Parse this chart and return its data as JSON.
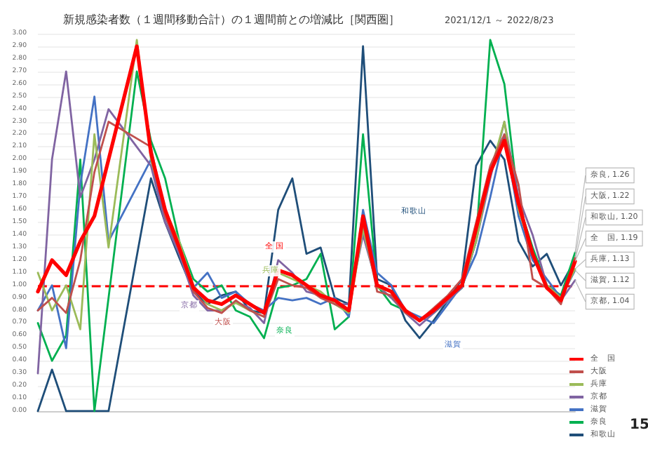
{
  "chart_data": {
    "type": "line",
    "title": "新規感染者数（１週間移動合計）の１週間前との増減比［関西圏］",
    "subtitle": "2021/12/1 ～ 2022/8/23",
    "categories": [
      null,
      null,
      null,
      null,
      null,
      null,
      null,
      null,
      null,
      null,
      null,
      null,
      null,
      null,
      null,
      null,
      null,
      null,
      null,
      null,
      null,
      null,
      null,
      null,
      null,
      null,
      null,
      null,
      null,
      null,
      null,
      null,
      null,
      null,
      null,
      null,
      null,
      null,
      null
    ],
    "series": [
      {
        "name": "全　国",
        "color": "#ff0000",
        "values": [
          0.95,
          1.2,
          1.08,
          1.35,
          1.55,
          2.0,
          null,
          2.9,
          2.05,
          1.6,
          1.3,
          0.98,
          0.88,
          0.85,
          0.92,
          0.85,
          0.78,
          1.12,
          1.08,
          1.0,
          0.92,
          0.88,
          0.8,
          1.55,
          1.0,
          0.95,
          0.8,
          0.72,
          0.8,
          0.9,
          1.0,
          1.45,
          1.9,
          2.15,
          1.65,
          1.25,
          0.98,
          0.88,
          1.19
        ],
        "value_labels": [
          null,
          null,
          null,
          null,
          null,
          null,
          null,
          null,
          null,
          null,
          null,
          null,
          null,
          null,
          null,
          null,
          null,
          null,
          null,
          null,
          null,
          null,
          null,
          null,
          null,
          null,
          null,
          null,
          null,
          null,
          null,
          null,
          null,
          null,
          null,
          null,
          null,
          null,
          "全　国, 1.19"
        ]
      },
      {
        "name": "大阪",
        "color": "#c0504d",
        "values": [
          0.8,
          0.9,
          0.78,
          1.2,
          1.9,
          2.3,
          null,
          null,
          2.1,
          1.55,
          1.28,
          0.95,
          0.82,
          0.78,
          0.88,
          0.8,
          0.75,
          1.05,
          1.0,
          0.98,
          0.9,
          0.85,
          0.8,
          1.5,
          0.95,
          0.92,
          0.78,
          0.72,
          0.82,
          0.92,
          1.05,
          1.5,
          1.95,
          2.2,
          1.8,
          1.05,
          0.98,
          0.85,
          1.22
        ],
        "value_labels": [
          null,
          null,
          null,
          null,
          null,
          null,
          null,
          null,
          null,
          null,
          null,
          null,
          null,
          null,
          null,
          null,
          null,
          null,
          null,
          null,
          null,
          null,
          null,
          null,
          null,
          null,
          null,
          null,
          null,
          null,
          null,
          null,
          null,
          null,
          null,
          null,
          null,
          null,
          "大阪, 1.22"
        ]
      },
      {
        "name": "兵庫",
        "color": "#9bbb59",
        "values": [
          1.1,
          0.8,
          1.0,
          0.65,
          2.2,
          1.3,
          null,
          2.95,
          2.0,
          1.6,
          1.35,
          1.0,
          0.85,
          0.8,
          0.86,
          0.8,
          0.75,
          1.1,
          1.05,
          1.0,
          0.95,
          0.85,
          0.78,
          1.45,
          0.98,
          0.95,
          0.8,
          0.72,
          0.8,
          0.9,
          1.0,
          1.35,
          1.9,
          2.3,
          1.6,
          1.25,
          1.0,
          0.9,
          1.13
        ],
        "value_labels": [
          null,
          null,
          null,
          null,
          null,
          null,
          null,
          null,
          null,
          null,
          null,
          null,
          null,
          null,
          null,
          null,
          null,
          null,
          null,
          null,
          null,
          null,
          null,
          null,
          null,
          null,
          null,
          null,
          null,
          null,
          null,
          null,
          null,
          null,
          null,
          null,
          null,
          null,
          "兵庫, 1.13"
        ]
      },
      {
        "name": "京都",
        "color": "#8064a2",
        "values": [
          0.3,
          2.0,
          2.7,
          1.7,
          2.0,
          2.4,
          null,
          null,
          1.95,
          1.5,
          1.25,
          0.92,
          0.8,
          0.8,
          0.87,
          0.82,
          0.7,
          1.2,
          1.1,
          0.95,
          0.92,
          0.85,
          0.85,
          1.4,
          1.0,
          0.9,
          0.78,
          0.68,
          0.78,
          0.88,
          0.98,
          1.35,
          1.85,
          2.3,
          1.7,
          1.4,
          1.0,
          0.88,
          1.04
        ],
        "value_labels": [
          null,
          null,
          null,
          null,
          null,
          null,
          null,
          null,
          null,
          null,
          null,
          null,
          null,
          null,
          null,
          null,
          null,
          null,
          null,
          null,
          null,
          null,
          null,
          null,
          null,
          null,
          null,
          null,
          null,
          null,
          null,
          null,
          null,
          null,
          null,
          null,
          null,
          null,
          "京都, 1.04"
        ]
      },
      {
        "name": "滋賀",
        "color": "#4472c4",
        "values": [
          0.8,
          1.0,
          0.5,
          1.8,
          2.5,
          1.35,
          null,
          null,
          2.0,
          1.55,
          1.25,
          0.98,
          1.1,
          0.9,
          0.95,
          0.85,
          0.8,
          0.9,
          0.88,
          0.9,
          0.85,
          0.9,
          0.75,
          1.6,
          1.1,
          1.0,
          0.8,
          0.75,
          0.7,
          0.85,
          1.0,
          1.25,
          1.7,
          2.2,
          1.55,
          1.2,
          1.05,
          0.9,
          1.12
        ],
        "value_labels": [
          null,
          null,
          null,
          null,
          null,
          null,
          null,
          null,
          null,
          null,
          null,
          null,
          null,
          null,
          null,
          null,
          null,
          null,
          null,
          null,
          null,
          null,
          null,
          null,
          null,
          null,
          null,
          null,
          null,
          null,
          null,
          null,
          null,
          null,
          null,
          null,
          null,
          null,
          "滋賀, 1.12"
        ]
      },
      {
        "name": "奈良",
        "color": "#00b050",
        "values": [
          0.7,
          0.4,
          0.6,
          2.0,
          0.0,
          null,
          null,
          2.7,
          2.15,
          1.85,
          1.35,
          1.05,
          0.95,
          1.0,
          0.8,
          0.75,
          0.58,
          0.98,
          1.0,
          1.05,
          1.25,
          0.65,
          0.75,
          2.2,
          1.0,
          0.85,
          0.8,
          0.72,
          0.78,
          0.88,
          0.98,
          1.35,
          2.95,
          2.6,
          1.65,
          1.3,
          1.0,
          0.92,
          1.26
        ],
        "value_labels": [
          null,
          null,
          null,
          null,
          null,
          null,
          null,
          null,
          null,
          null,
          null,
          null,
          null,
          null,
          null,
          null,
          null,
          null,
          null,
          null,
          null,
          null,
          null,
          null,
          null,
          null,
          null,
          null,
          null,
          null,
          null,
          null,
          null,
          null,
          null,
          null,
          null,
          null,
          "奈良, 1.26"
        ]
      },
      {
        "name": "和歌山",
        "color": "#1f4e79",
        "values": [
          0.0,
          0.33,
          0.0,
          0.0,
          0.0,
          0.0,
          null,
          null,
          1.85,
          1.5,
          1.22,
          0.95,
          0.85,
          0.92,
          0.95,
          0.8,
          0.78,
          1.6,
          1.85,
          1.25,
          1.3,
          0.9,
          0.85,
          2.9,
          1.05,
          1.0,
          0.72,
          0.58,
          0.72,
          0.88,
          1.05,
          1.95,
          2.15,
          2.0,
          1.35,
          1.15,
          1.25,
          1.0,
          1.2
        ],
        "value_labels": [
          null,
          null,
          null,
          null,
          null,
          null,
          null,
          null,
          null,
          null,
          null,
          null,
          null,
          null,
          null,
          null,
          null,
          null,
          null,
          null,
          null,
          null,
          null,
          null,
          null,
          null,
          null,
          null,
          null,
          null,
          null,
          null,
          null,
          null,
          null,
          null,
          null,
          null,
          "和歌山, 1.20"
        ]
      }
    ],
    "ylim": [
      0,
      3
    ],
    "yticks": [
      {
        "value": 0,
        "label": "0.00"
      },
      {
        "value": 0.1,
        "label": "0.10"
      },
      {
        "value": 0.2,
        "label": "0.20"
      },
      {
        "value": 0.3,
        "label": "0.30"
      },
      {
        "value": 0.4,
        "label": "0.40"
      },
      {
        "value": 0.5,
        "label": "0.50"
      },
      {
        "value": 0.6,
        "label": "0.60"
      },
      {
        "value": 0.7,
        "label": "0.70"
      },
      {
        "value": 0.8,
        "label": "0.80"
      },
      {
        "value": 0.9,
        "label": "0.90"
      },
      {
        "value": 1,
        "label": "1.00"
      },
      {
        "value": 1.1,
        "label": "1.10"
      },
      {
        "value": 1.2,
        "label": "1.20"
      },
      {
        "value": 1.3,
        "label": "1.30"
      },
      {
        "value": 1.4,
        "label": "1.40"
      },
      {
        "value": 1.5,
        "label": "1.50"
      },
      {
        "value": 1.6,
        "label": "1.60"
      },
      {
        "value": 1.7,
        "label": "1.70"
      },
      {
        "value": 1.8,
        "label": "1.80"
      },
      {
        "value": 1.9,
        "label": "1.90"
      },
      {
        "value": 2,
        "label": "2.00"
      },
      {
        "value": 2.1,
        "label": "2.10"
      },
      {
        "value": 2.2,
        "label": "2.20"
      },
      {
        "value": 2.3,
        "label": "2.30"
      },
      {
        "value": 2.4,
        "label": "2.40"
      },
      {
        "value": 2.5,
        "label": "2.50"
      },
      {
        "value": 2.6,
        "label": "2.60"
      },
      {
        "value": 2.7,
        "label": "2.70"
      },
      {
        "value": 2.8,
        "label": "2.80"
      },
      {
        "value": 2.9,
        "label": "2.90"
      },
      {
        "value": 3,
        "label": "3.00"
      }
    ],
    "ref_lines": [
      {
        "axis": "y",
        "value": 1,
        "color": "#ff0000",
        "line_style": "dashed"
      }
    ],
    "annotations": [
      "京都",
      "大阪",
      "奈良",
      "全 国",
      "兵庫",
      "和歌山",
      "滋賀",
      "15"
    ],
    "grid": "y",
    "legend": "bottom right",
    "tick_labels": "y",
    "marker": "none",
    "line_style": "solid"
  }
}
